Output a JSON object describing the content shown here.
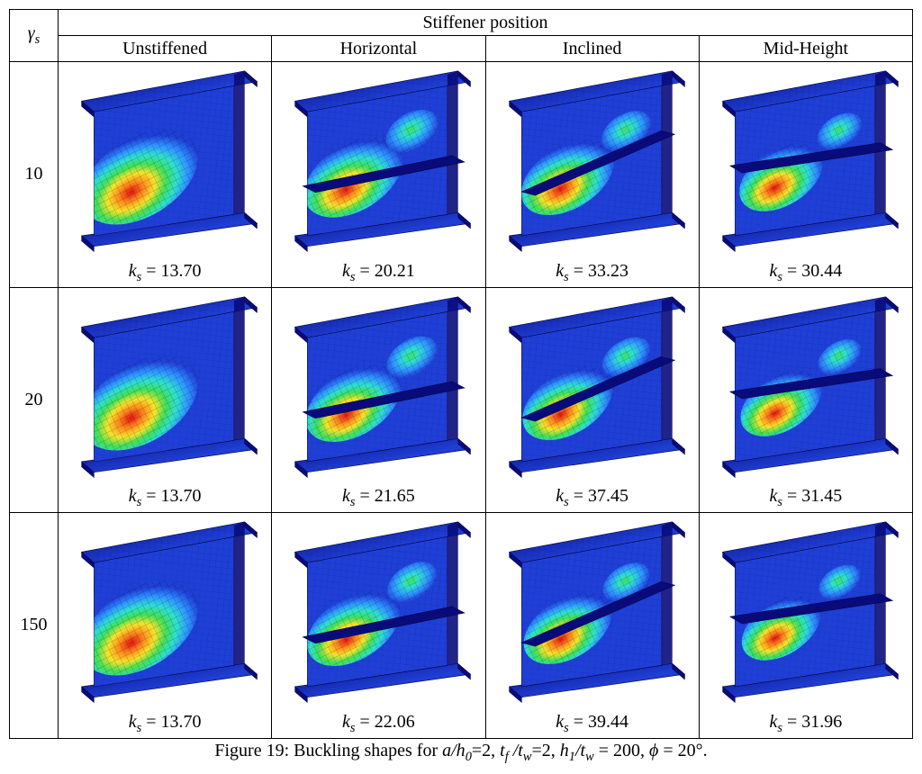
{
  "header": {
    "corner_symbol": "γ",
    "corner_subscript": "s",
    "group_title": "Stiffener position",
    "columns": [
      "Unstiffened",
      "Horizontal",
      "Inclined",
      "Mid-Height"
    ]
  },
  "row_labels": [
    "10",
    "20",
    "150"
  ],
  "ks_label": {
    "symbol": "k",
    "subscript": "s",
    "equals": " = "
  },
  "cells": [
    [
      {
        "ks": "13.70",
        "variant": "unstiffened",
        "buckle": {
          "bulge_scale": 1.0,
          "secondary": false
        }
      },
      {
        "ks": "20.21",
        "variant": "horizontal",
        "buckle": {
          "bulge_scale": 0.85,
          "secondary": true,
          "stiff_y": 0.62,
          "stiff_tilt": -3
        }
      },
      {
        "ks": "33.23",
        "variant": "inclined",
        "buckle": {
          "bulge_scale": 0.8,
          "secondary": true,
          "stiff_y": 0.55,
          "stiff_tilt": -15
        }
      },
      {
        "ks": "30.44",
        "variant": "midheight",
        "buckle": {
          "bulge_scale": 0.72,
          "secondary": true,
          "stiff_y": 0.5,
          "stiff_tilt": 0
        }
      }
    ],
    [
      {
        "ks": "13.70",
        "variant": "unstiffened",
        "buckle": {
          "bulge_scale": 1.0,
          "secondary": false
        }
      },
      {
        "ks": "21.65",
        "variant": "horizontal",
        "buckle": {
          "bulge_scale": 0.82,
          "secondary": true,
          "stiff_y": 0.62,
          "stiff_tilt": -3
        }
      },
      {
        "ks": "37.45",
        "variant": "inclined",
        "buckle": {
          "bulge_scale": 0.78,
          "secondary": true,
          "stiff_y": 0.55,
          "stiff_tilt": -15
        }
      },
      {
        "ks": "31.45",
        "variant": "midheight",
        "buckle": {
          "bulge_scale": 0.7,
          "secondary": true,
          "stiff_y": 0.5,
          "stiff_tilt": 0
        }
      }
    ],
    [
      {
        "ks": "13.70",
        "variant": "unstiffened",
        "buckle": {
          "bulge_scale": 1.0,
          "secondary": false
        }
      },
      {
        "ks": "22.06",
        "variant": "horizontal",
        "buckle": {
          "bulge_scale": 0.8,
          "secondary": true,
          "stiff_y": 0.62,
          "stiff_tilt": -3
        }
      },
      {
        "ks": "39.44",
        "variant": "inclined",
        "buckle": {
          "bulge_scale": 0.76,
          "secondary": true,
          "stiff_y": 0.55,
          "stiff_tilt": -15
        }
      },
      {
        "ks": "31.96",
        "variant": "midheight",
        "buckle": {
          "bulge_scale": 0.68,
          "secondary": true,
          "stiff_y": 0.5,
          "stiff_tilt": 0
        }
      }
    ]
  ],
  "caption": {
    "prefix": "Figure 19: Buckling shapes for ",
    "terms": [
      {
        "sym": "a/h",
        "sub": "0",
        "val": "=2"
      },
      {
        "sep": ", "
      },
      {
        "sym": "t",
        "sub": "f",
        "mid": " /t",
        "sub2": "w",
        "val": "=2"
      },
      {
        "sep": ", "
      },
      {
        "sym": "h",
        "sub": "1",
        "mid": "/t",
        "sub2": "w",
        "val": " = 200"
      },
      {
        "sep": ", "
      },
      {
        "sym": "ϕ",
        "val": " = 20°."
      }
    ]
  },
  "palette": {
    "blue_dark": "#0a0b7a",
    "blue_mid": "#1f3fd6",
    "blue_light": "#2f94ff",
    "cyan": "#2ee0d0",
    "green": "#40e058",
    "yellow": "#f5e52a",
    "orange": "#ff8a1a",
    "red": "#e21212",
    "mesh": "#00003a"
  }
}
